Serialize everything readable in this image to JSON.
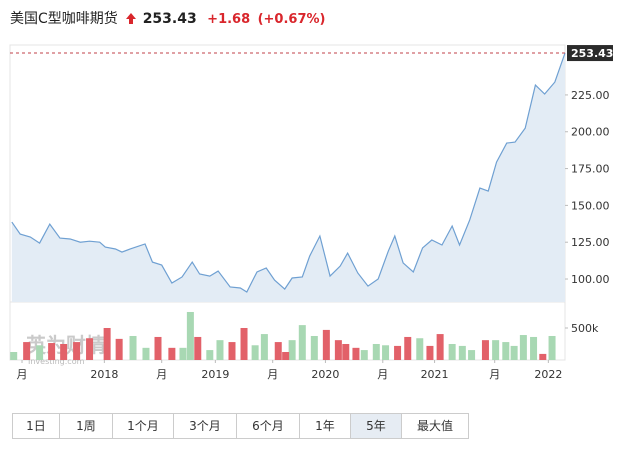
{
  "chart_data": {
    "type": "line",
    "title": "美国C型咖啡期货",
    "last_price": 253.43,
    "change": "+1.68",
    "change_percent": "(+0.67%)",
    "last_price_label": "253.43",
    "color": "#6fa0d2",
    "area_color": "#e3ecf5",
    "x": [
      0.2,
      1.1,
      2.2,
      3.2,
      4.3,
      5.4,
      6.5,
      7.6,
      8.6,
      9.7,
      10.3,
      11.4,
      12.1,
      13.0,
      14.6,
      15.4,
      16.4,
      17.5,
      18.6,
      19.7,
      20.5,
      21.6,
      22.5,
      23.8,
      24.9,
      25.6,
      26.7,
      27.7,
      28.6,
      29.7,
      30.5,
      31.6,
      32.4,
      33.5,
      34.6,
      35.7,
      36.5,
      37.6,
      38.7,
      39.8,
      40.9,
      41.6,
      42.5,
      43.6,
      44.6,
      45.6,
      46.7,
      47.8,
      48.6,
      49.7,
      50.8,
      51.7,
      52.6,
      53.7,
      54.6,
      55.7,
      56.8,
      57.8,
      58.9,
      60.0
    ],
    "values": [
      138.7,
      130.5,
      128.5,
      124.4,
      137.3,
      127.8,
      127.2,
      125,
      125.7,
      125,
      121.7,
      120.4,
      118.3,
      120.4,
      123.8,
      111.5,
      109.5,
      97.3,
      101.4,
      111.5,
      103.4,
      102,
      105.4,
      94.6,
      93.9,
      91.2,
      104.8,
      107.5,
      99.3,
      93.2,
      100.7,
      101.4,
      115.6,
      129.2,
      102,
      108.8,
      117.6,
      104.1,
      95.2,
      100,
      119,
      129.2,
      110.9,
      104.8,
      121.1,
      126.5,
      123.1,
      136,
      123.1,
      140.1,
      161.8,
      159.7,
      179.4,
      192.3,
      193,
      202.5,
      231.7,
      225.6,
      233.7,
      253.43
    ],
    "xlim": [
      0,
      60
    ],
    "xticks": [
      {
        "value": 1.3,
        "label": "月"
      },
      {
        "value": 10.2,
        "label": "2018"
      },
      {
        "value": 16.4,
        "label": "月"
      },
      {
        "value": 22.2,
        "label": "2019"
      },
      {
        "value": 28.4,
        "label": "月"
      },
      {
        "value": 34.1,
        "label": "2020"
      },
      {
        "value": 40.3,
        "label": "月"
      },
      {
        "value": 45.9,
        "label": "2021"
      },
      {
        "value": 52.4,
        "label": "月"
      },
      {
        "value": 58.2,
        "label": "2022"
      }
    ],
    "ylim": [
      84.4,
      258.9
    ],
    "yticks": [
      {
        "value": 100,
        "label": "100.00"
      },
      {
        "value": 125,
        "label": "125.00"
      },
      {
        "value": 150,
        "label": "150.00"
      },
      {
        "value": 175,
        "label": "175.00"
      },
      {
        "value": 200,
        "label": "200.00"
      },
      {
        "value": 225,
        "label": "225.00"
      }
    ],
    "y2lim": [
      0,
      906
    ],
    "y2ticks": [
      {
        "value": 500,
        "label": "500k"
      }
    ],
    "volume_up": {
      "color": "#a8d8b3",
      "x": [
        0.4,
        3.2,
        13.3,
        14.7,
        18.7,
        19.5,
        21.6,
        22.7,
        26.5,
        27.5,
        30.5,
        31.6,
        32.9,
        38.3,
        39.6,
        40.6,
        44.3,
        47.8,
        48.9,
        49.9,
        52.5,
        53.6,
        54.5,
        55.5,
        56.6,
        58.6
      ],
      "values": [
        125,
        230,
        375,
        190,
        190,
        750,
        155,
        310,
        230,
        405,
        310,
        545,
        375,
        155,
        250,
        230,
        340,
        250,
        220,
        155,
        310,
        280,
        220,
        390,
        360,
        375
      ]
    },
    "volume_down": {
      "color": "#e26169",
      "x": [
        1.8,
        4.5,
        5.8,
        7.2,
        8.6,
        10.5,
        11.8,
        16.0,
        17.5,
        20.3,
        24.0,
        25.3,
        29.0,
        29.8,
        34.2,
        35.5,
        36.3,
        37.4,
        41.9,
        43.0,
        45.4,
        46.5,
        51.4,
        57.6
      ],
      "values": [
        280,
        265,
        250,
        280,
        340,
        500,
        330,
        360,
        190,
        360,
        280,
        500,
        280,
        125,
        470,
        310,
        250,
        190,
        220,
        360,
        220,
        405,
        310,
        95
      ]
    },
    "watermark": "英为财情",
    "watermark_sub": "Investing.com"
  },
  "range_buttons": [
    "1日",
    "1周",
    "1个月",
    "3个月",
    "6个月",
    "1年",
    "5年",
    "最大值"
  ],
  "active_range": 6
}
